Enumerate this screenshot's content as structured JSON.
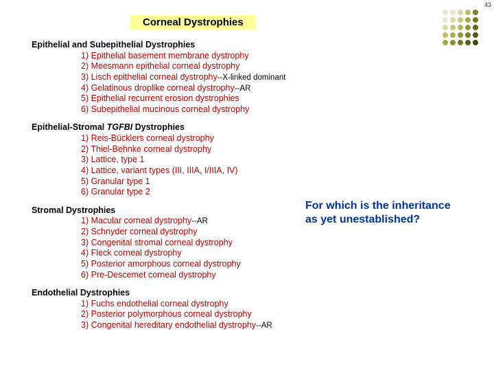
{
  "page_number": "43",
  "title": "Corneal Dystrophies",
  "dot_grid": {
    "rows": 5,
    "cols": 5,
    "colors": [
      [
        "#e8e8d0",
        "#e8e8d0",
        "#d8d8a8",
        "#b8c060",
        "#788028"
      ],
      [
        "#e8e8d0",
        "#d8d8a8",
        "#c8c878",
        "#a0a848",
        "#707820"
      ],
      [
        "#d8d8a8",
        "#c8c878",
        "#b0b858",
        "#909838",
        "#606818"
      ],
      [
        "#c0c068",
        "#a8b050",
        "#909838",
        "#788028",
        "#505810"
      ],
      [
        "#a0a848",
        "#889030",
        "#707820",
        "#586010",
        "#404808"
      ]
    ]
  },
  "sections": [
    {
      "title_pre": "Epithelial and Subepithelial Dystrophies",
      "title_ital": "",
      "title_post": "",
      "items": [
        {
          "text": "1) Epithelial basement membrane dystrophy",
          "anno": ""
        },
        {
          "text": "2) Meesmann epithelial corneal dystrophy",
          "anno": ""
        },
        {
          "text": "3) Lisch epithelial corneal dystrophy",
          "anno": "--X-linked dominant"
        },
        {
          "text": "4) Gelatinous droplike corneal dystrophy",
          "anno": "--AR"
        },
        {
          "text": "5) Epithelial recurrent erosion dystrophies",
          "anno": ""
        },
        {
          "text": "6) Subepithelial mucinous corneal dystrophy",
          "anno": ""
        }
      ]
    },
    {
      "title_pre": "Epithelial-Stromal ",
      "title_ital": "TGFBI",
      "title_post": " Dystrophies",
      "items": [
        {
          "text": "1) Reis-Bücklers corneal dystrophy",
          "anno": ""
        },
        {
          "text": "2) Thiel-Behnke corneal dystrophy",
          "anno": ""
        },
        {
          "text": "3) Lattice, type 1",
          "anno": ""
        },
        {
          "text": "4) Lattice, variant types (III, IIIA, I/IIIA, IV)",
          "anno": ""
        },
        {
          "text": "5) Granular type 1",
          "anno": ""
        },
        {
          "text": "6) Granular type 2",
          "anno": ""
        }
      ]
    },
    {
      "title_pre": "Stromal Dystrophies",
      "title_ital": "",
      "title_post": "",
      "items": [
        {
          "text": "1) Macular corneal dystrophy",
          "anno": "--AR"
        },
        {
          "text": "2) Schnyder corneal dystrophy",
          "anno": ""
        },
        {
          "text": "3) Congenital stromal corneal dystrophy",
          "anno": ""
        },
        {
          "text": "4) Fleck corneal dystrophy",
          "anno": ""
        },
        {
          "text": "5) Posterior amorphous corneal dystrophy",
          "anno": ""
        },
        {
          "text": "6) Pre-Descemet corneal dystrophy",
          "anno": ""
        }
      ]
    },
    {
      "title_pre": "Endothelial Dystrophies",
      "title_ital": "",
      "title_post": "",
      "items": [
        {
          "text": "1) Fuchs endothelial corneal dystrophy",
          "anno": ""
        },
        {
          "text": "2) Posterior polymorphous corneal dystrophy",
          "anno": ""
        },
        {
          "text": "3) Congenital hereditary endothelial dystrophy",
          "anno": "--AR"
        }
      ]
    }
  ],
  "question_l1": "For which is the inheritance",
  "question_l2": "as yet unestablished?"
}
